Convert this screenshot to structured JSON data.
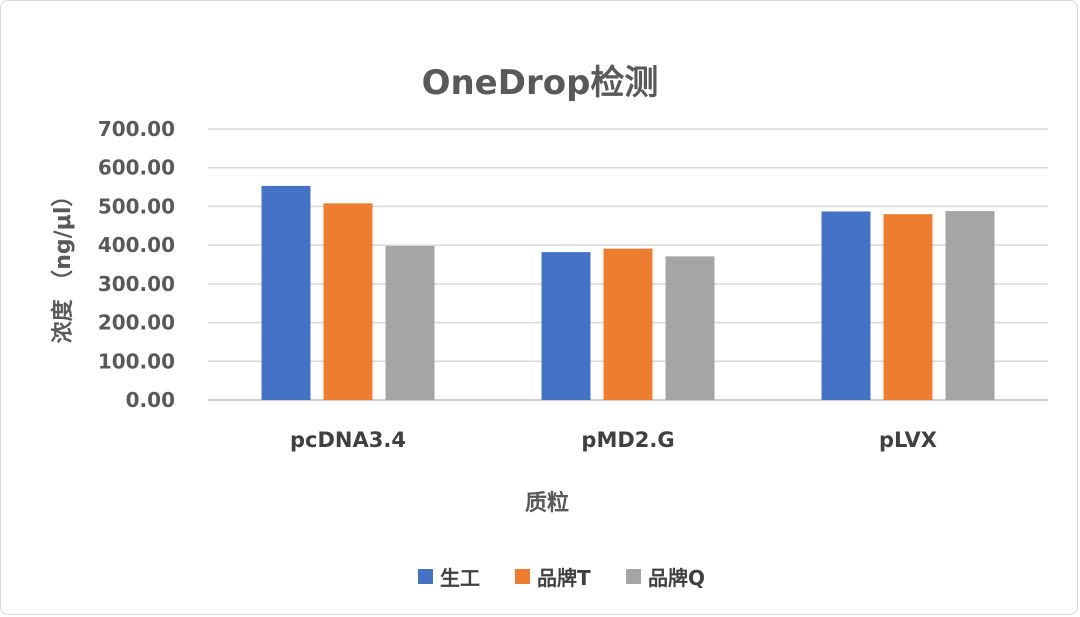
{
  "chart_data": {
    "type": "bar",
    "title": "OneDrop检测",
    "xlabel": "质粒",
    "ylabel": "浓度 （ng/μl）",
    "categories": [
      "pcDNA3.4",
      "pMD2.G",
      "pLVX"
    ],
    "series": [
      {
        "name": "生工",
        "color": "#4472C4",
        "values": [
          553,
          382,
          487
        ]
      },
      {
        "name": "品牌T",
        "color": "#ED7D31",
        "values": [
          508,
          391,
          480
        ]
      },
      {
        "name": "品牌Q",
        "color": "#A5A5A5",
        "values": [
          398,
          371,
          488
        ]
      }
    ],
    "ylim": [
      0,
      700
    ],
    "yticks": [
      "0.00",
      "100.00",
      "200.00",
      "300.00",
      "400.00",
      "500.00",
      "600.00",
      "700.00"
    ],
    "grid": true,
    "legend_position": "bottom"
  }
}
